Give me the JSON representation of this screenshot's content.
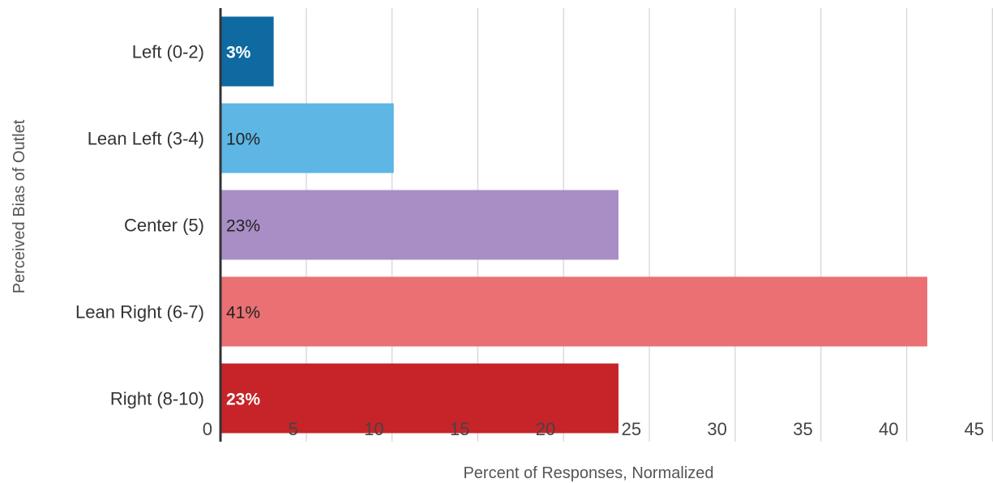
{
  "chart_data": {
    "type": "bar",
    "orientation": "horizontal",
    "title": "",
    "xlabel": "Percent of Responses, Normalized",
    "ylabel": "Perceived Bias of Outlet",
    "categories": [
      "Left (0-2)",
      "Lean Left (3-4)",
      "Center (5)",
      "Lean Right (6-7)",
      "Right (8-10)"
    ],
    "values": [
      3.1,
      10.1,
      23.2,
      41.2,
      23.2
    ],
    "data_labels": [
      "3%",
      "10%",
      "23%",
      "41%",
      "23%"
    ],
    "bar_colors": [
      "#0e6aa0",
      "#5db6e4",
      "#a98ec6",
      "#ea7073",
      "#c62428"
    ],
    "label_colors": [
      "#ffffff",
      "#222222",
      "#222222",
      "#222222",
      "#ffffff"
    ],
    "xlim": [
      0,
      45
    ],
    "xticks": [
      "0",
      "5",
      "10",
      "15",
      "20",
      "25",
      "30",
      "35",
      "40",
      "45"
    ],
    "grid": true,
    "legend": "none"
  }
}
